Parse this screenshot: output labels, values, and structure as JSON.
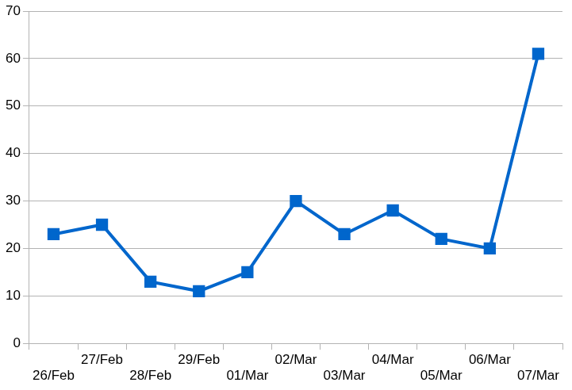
{
  "chart_data": {
    "type": "line",
    "categories": [
      "26/Feb",
      "27/Feb",
      "28/Feb",
      "29/Feb",
      "01/Mar",
      "02/Mar",
      "03/Mar",
      "04/Mar",
      "05/Mar",
      "06/Mar",
      "07/Mar"
    ],
    "values": [
      23,
      25,
      13,
      11,
      15,
      30,
      23,
      28,
      22,
      20,
      61
    ],
    "color": "#0066cc",
    "marker": "square",
    "ylim": [
      0,
      70
    ],
    "yticks": [
      0,
      10,
      20,
      30,
      40,
      50,
      60,
      70
    ],
    "grid": true
  }
}
